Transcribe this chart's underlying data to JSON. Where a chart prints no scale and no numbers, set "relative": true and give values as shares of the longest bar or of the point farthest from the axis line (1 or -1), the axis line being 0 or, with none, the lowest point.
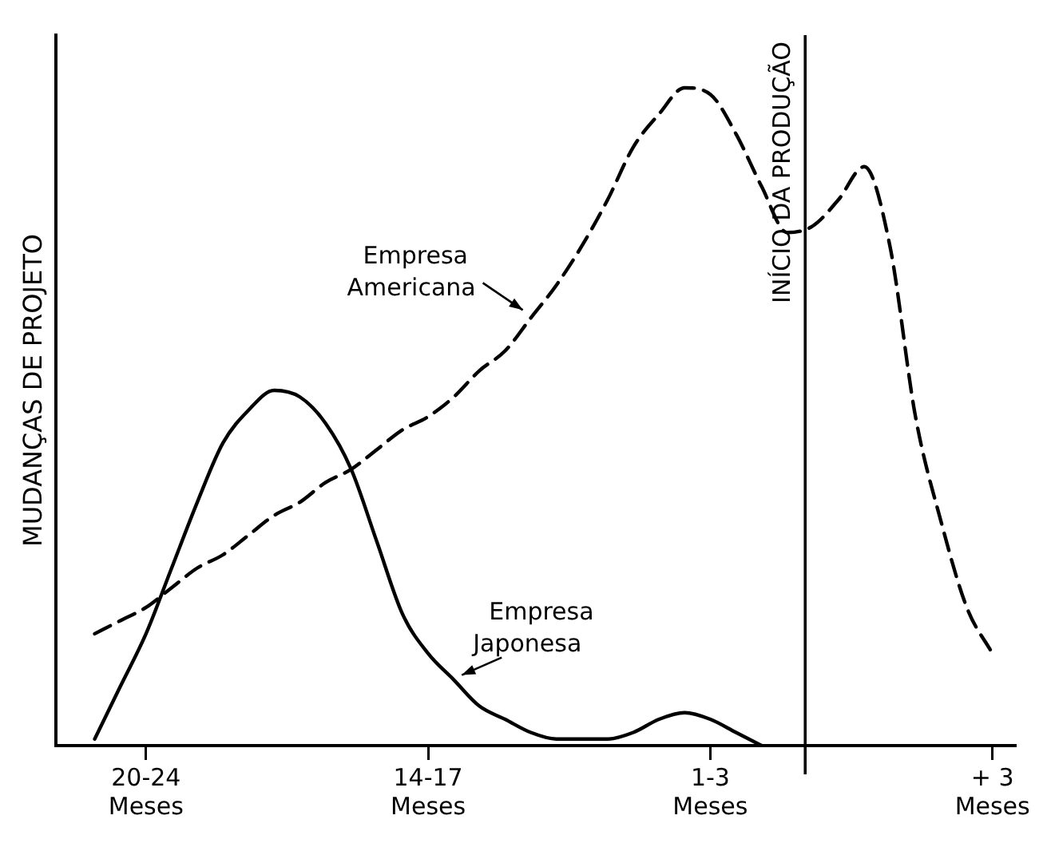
{
  "chart_data": {
    "type": "line",
    "relative": true,
    "ylabel": "MUDANÇAS DE PROJETO",
    "categories": [
      null,
      null,
      "20-24 Meses",
      null,
      null,
      null,
      null,
      null,
      null,
      null,
      null,
      null,
      null,
      "14-17 Meses",
      null,
      null,
      null,
      null,
      null,
      null,
      null,
      null,
      null,
      null,
      "1-3 Meses",
      null,
      null,
      null,
      null,
      null,
      null,
      null,
      null,
      null,
      null,
      "+ 3 Meses"
    ],
    "grid": false,
    "legend": false,
    "marker": "none",
    "annotations": [
      "INÍCIO DA PRODUÇÃO"
    ],
    "series": [
      {
        "name": "Empresa Americana",
        "color": "#000000",
        "line_style": "dashed",
        "values": [
          0.17,
          0.19,
          0.21,
          0.24,
          0.27,
          0.29,
          0.32,
          0.35,
          0.37,
          0.4,
          0.42,
          0.45,
          0.48,
          0.5,
          0.53,
          0.57,
          0.6,
          0.65,
          0.7,
          0.76,
          0.83,
          0.91,
          0.96,
          1,
          0.99,
          0.93,
          0.85,
          0.78,
          0.79,
          0.83,
          0.88,
          0.76,
          0.5,
          0.34,
          0.21,
          0.14
        ]
      },
      {
        "name": "Empresa Japonesa",
        "color": "#000000",
        "line_style": "solid",
        "values": [
          0.01,
          0.09,
          0.17,
          0.27,
          0.37,
          0.46,
          0.51,
          0.54,
          0.53,
          0.49,
          0.42,
          0.31,
          0.2,
          0.14,
          0.1,
          0.06,
          0.04,
          0.02,
          0.01,
          0.01,
          0.01,
          0.02,
          0.04,
          0.05,
          0.04,
          0.02,
          0,
          null,
          null,
          null,
          null,
          null,
          null,
          null,
          null,
          null
        ]
      }
    ]
  }
}
